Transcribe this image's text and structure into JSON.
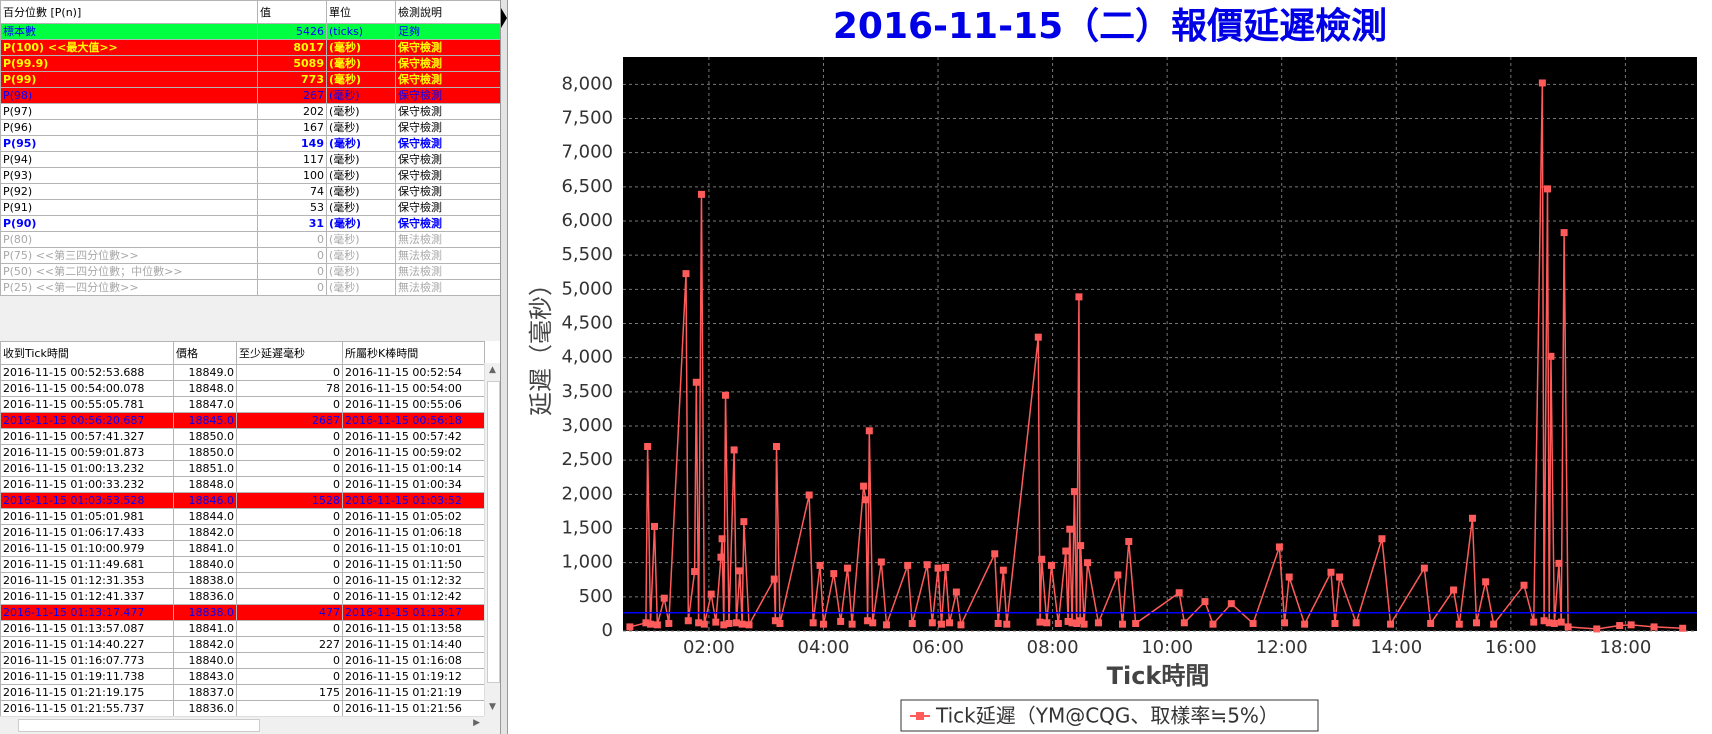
{
  "percentiles": {
    "headers": [
      "百分位數 [P(n)]",
      "值",
      "單位",
      "檢測說明"
    ],
    "rows": [
      {
        "cells": [
          "標本數",
          5426,
          "(ticks)",
          "足夠"
        ],
        "bg": "#00ff40",
        "fg": "#0000ff",
        "bold": false
      },
      {
        "cells": [
          "P(100)  <<最大值>>",
          8017,
          "(毫秒)",
          "保守檢測"
        ],
        "bg": "#ff0000",
        "fg": "#ffff00",
        "bold": true
      },
      {
        "cells": [
          "P(99.9)",
          5089,
          "(毫秒)",
          "保守檢測"
        ],
        "bg": "#ff0000",
        "fg": "#ffff00",
        "bold": true
      },
      {
        "cells": [
          "P(99)",
          773,
          "(毫秒)",
          "保守檢測"
        ],
        "bg": "#ff0000",
        "fg": "#ffff00",
        "bold": true
      },
      {
        "cells": [
          "P(98)",
          267,
          "(毫秒)",
          "保守檢測"
        ],
        "bg": "#ff0000",
        "fg": "#0000ff",
        "bold": false
      },
      {
        "cells": [
          "P(97)",
          202,
          "(毫秒)",
          "保守檢測"
        ],
        "bg": "#ffffff",
        "fg": "#000000",
        "bold": false
      },
      {
        "cells": [
          "P(96)",
          167,
          "(毫秒)",
          "保守檢測"
        ],
        "bg": "#ffffff",
        "fg": "#000000",
        "bold": false
      },
      {
        "cells": [
          "P(95)",
          149,
          "(毫秒)",
          "保守檢測"
        ],
        "bg": "#ffffff",
        "fg": "#0000ff",
        "bold": true
      },
      {
        "cells": [
          "P(94)",
          117,
          "(毫秒)",
          "保守檢測"
        ],
        "bg": "#ffffff",
        "fg": "#000000",
        "bold": false
      },
      {
        "cells": [
          "P(93)",
          100,
          "(毫秒)",
          "保守檢測"
        ],
        "bg": "#ffffff",
        "fg": "#000000",
        "bold": false
      },
      {
        "cells": [
          "P(92)",
          74,
          "(毫秒)",
          "保守檢測"
        ],
        "bg": "#ffffff",
        "fg": "#000000",
        "bold": false
      },
      {
        "cells": [
          "P(91)",
          53,
          "(毫秒)",
          "保守檢測"
        ],
        "bg": "#ffffff",
        "fg": "#000000",
        "bold": false
      },
      {
        "cells": [
          "P(90)",
          31,
          "(毫秒)",
          "保守檢測"
        ],
        "bg": "#ffffff",
        "fg": "#0000ff",
        "bold": true
      },
      {
        "cells": [
          "P(80)",
          0,
          "(毫秒)",
          "無法檢測"
        ],
        "bg": "#ffffff",
        "fg": "#a8a8a8",
        "bold": false
      },
      {
        "cells": [
          "P(75)  <<第三四分位數>>",
          0,
          "(毫秒)",
          "無法檢測"
        ],
        "bg": "#ffffff",
        "fg": "#a8a8a8",
        "bold": false
      },
      {
        "cells": [
          "P(50)  <<第二四分位數；中位數>>",
          0,
          "(毫秒)",
          "無法檢測"
        ],
        "bg": "#ffffff",
        "fg": "#a8a8a8",
        "bold": false
      },
      {
        "cells": [
          "P(25)  <<第一四分位數>>",
          0,
          "(毫秒)",
          "無法檢測"
        ],
        "bg": "#ffffff",
        "fg": "#a8a8a8",
        "bold": false
      }
    ]
  },
  "ticks": {
    "headers": [
      "收到Tick時間",
      "價格",
      "至少延遲毫秒",
      "所屬秒K棒時間"
    ],
    "rows": [
      {
        "cells": [
          "2016-11-15 00:52:53.688",
          "18849.0",
          0,
          "2016-11-15 00:52:54"
        ]
      },
      {
        "cells": [
          "2016-11-15 00:54:00.078",
          "18848.0",
          78,
          "2016-11-15 00:54:00"
        ]
      },
      {
        "cells": [
          "2016-11-15 00:55:05.781",
          "18847.0",
          0,
          "2016-11-15 00:55:06"
        ]
      },
      {
        "cells": [
          "2016-11-15 00:56:20.687",
          "18845.0",
          2687,
          "2016-11-15 00:56:18"
        ],
        "bg": "#ff0000",
        "fg": "#0000ff"
      },
      {
        "cells": [
          "2016-11-15 00:57:41.327",
          "18850.0",
          0,
          "2016-11-15 00:57:42"
        ]
      },
      {
        "cells": [
          "2016-11-15 00:59:01.873",
          "18850.0",
          0,
          "2016-11-15 00:59:02"
        ]
      },
      {
        "cells": [
          "2016-11-15 01:00:13.232",
          "18851.0",
          0,
          "2016-11-15 01:00:14"
        ]
      },
      {
        "cells": [
          "2016-11-15 01:00:33.232",
          "18848.0",
          0,
          "2016-11-15 01:00:34"
        ]
      },
      {
        "cells": [
          "2016-11-15 01:03:53.528",
          "18846.0",
          1528,
          "2016-11-15 01:03:52"
        ],
        "bg": "#ff0000",
        "fg": "#0000ff"
      },
      {
        "cells": [
          "2016-11-15 01:05:01.981",
          "18844.0",
          0,
          "2016-11-15 01:05:02"
        ]
      },
      {
        "cells": [
          "2016-11-15 01:06:17.433",
          "18842.0",
          0,
          "2016-11-15 01:06:18"
        ]
      },
      {
        "cells": [
          "2016-11-15 01:10:00.979",
          "18841.0",
          0,
          "2016-11-15 01:10:01"
        ]
      },
      {
        "cells": [
          "2016-11-15 01:11:49.681",
          "18840.0",
          0,
          "2016-11-15 01:11:50"
        ]
      },
      {
        "cells": [
          "2016-11-15 01:12:31.353",
          "18838.0",
          0,
          "2016-11-15 01:12:32"
        ]
      },
      {
        "cells": [
          "2016-11-15 01:12:41.337",
          "18836.0",
          0,
          "2016-11-15 01:12:42"
        ]
      },
      {
        "cells": [
          "2016-11-15 01:13:17.477",
          "18838.0",
          477,
          "2016-11-15 01:13:17"
        ],
        "bg": "#ff0000",
        "fg": "#0000ff"
      },
      {
        "cells": [
          "2016-11-15 01:13:57.087",
          "18841.0",
          0,
          "2016-11-15 01:13:58"
        ]
      },
      {
        "cells": [
          "2016-11-15 01:14:40.227",
          "18842.0",
          227,
          "2016-11-15 01:14:40"
        ]
      },
      {
        "cells": [
          "2016-11-15 01:16:07.773",
          "18840.0",
          0,
          "2016-11-15 01:16:08"
        ]
      },
      {
        "cells": [
          "2016-11-15 01:19:11.738",
          "18843.0",
          0,
          "2016-11-15 01:19:12"
        ]
      },
      {
        "cells": [
          "2016-11-15 01:21:19.175",
          "18837.0",
          175,
          "2016-11-15 01:21:19"
        ]
      },
      {
        "cells": [
          "2016-11-15 01:21:55.737",
          "18836.0",
          0,
          "2016-11-15 01:21:56"
        ]
      }
    ]
  },
  "chart_data": {
    "type": "line",
    "title": "2016-11-15（二）報價延遲檢測",
    "x_label": "Tick時間",
    "y_label": "延遲（毫秒）",
    "x": [
      0.62,
      0.9,
      0.93,
      0.98,
      1.05,
      1.1,
      1.22,
      1.3,
      1.6,
      1.64,
      1.75,
      1.78,
      1.82,
      1.87,
      1.92,
      2.04,
      2.12,
      2.21,
      2.23,
      2.26,
      2.29,
      2.35,
      2.44,
      2.48,
      2.54,
      2.58,
      2.61,
      2.7,
      3.14,
      3.16,
      3.18,
      3.24,
      3.75,
      3.82,
      3.94,
      4.0,
      4.18,
      4.3,
      4.42,
      4.5,
      4.7,
      4.74,
      4.77,
      4.8,
      4.86,
      5.01,
      5.1,
      5.47,
      5.55,
      5.81,
      5.9,
      6.0,
      6.06,
      6.13,
      6.2,
      6.32,
      6.4,
      6.99,
      7.05,
      7.14,
      7.2,
      7.75,
      7.78,
      7.81,
      7.9,
      7.98,
      8.1,
      8.23,
      8.27,
      8.3,
      8.34,
      8.38,
      8.42,
      8.46,
      8.48,
      8.49,
      8.55,
      8.61,
      8.8,
      9.14,
      9.22,
      9.33,
      9.45,
      10.21,
      10.3,
      10.66,
      10.8,
      11.12,
      11.5,
      11.96,
      12.05,
      12.13,
      12.4,
      12.86,
      12.93,
      13.01,
      13.3,
      13.75,
      13.9,
      14.49,
      14.6,
      15.0,
      15.1,
      15.33,
      15.4,
      15.56,
      15.7,
      16.23,
      16.4,
      16.55,
      16.58,
      16.64,
      16.67,
      16.7,
      16.76,
      16.84,
      16.88,
      16.93,
      17.0,
      17.5,
      17.9,
      18.1,
      18.5,
      19.0
    ],
    "series": [
      {
        "name": "Tick延遲（YM@CQG、取樣率≒5%）",
        "color": "#ff5b5b",
        "values": [
          60,
          120,
          2700,
          100,
          1530,
          90,
          480,
          110,
          5230,
          150,
          870,
          3640,
          120,
          6390,
          100,
          540,
          130,
          1080,
          1350,
          90,
          3450,
          110,
          2650,
          120,
          880,
          100,
          1600,
          90,
          760,
          150,
          2700,
          110,
          1990,
          120,
          960,
          100,
          840,
          140,
          920,
          100,
          2120,
          1920,
          150,
          2930,
          120,
          1010,
          90,
          960,
          110,
          970,
          120,
          920,
          100,
          930,
          120,
          570,
          90,
          1130,
          110,
          890,
          100,
          4300,
          130,
          1050,
          120,
          960,
          110,
          1170,
          140,
          1490,
          120,
          2040,
          110,
          4890,
          150,
          1250,
          100,
          1000,
          120,
          820,
          100,
          1310,
          110,
          560,
          120,
          430,
          100,
          400,
          110,
          1230,
          120,
          790,
          100,
          860,
          110,
          790,
          120,
          1350,
          100,
          920,
          110,
          600,
          100,
          1650,
          120,
          720,
          100,
          670,
          130,
          8020,
          150,
          6470,
          120,
          4020,
          110,
          990,
          130,
          5830,
          60,
          30,
          80,
          90,
          60,
          40
        ]
      }
    ],
    "reference_line": {
      "value": 267,
      "color": "#0000ff"
    },
    "xlim": [
      0.5,
      19.25
    ],
    "ylim": [
      0,
      8400
    ],
    "xticks": [
      {
        "value": 2,
        "label": "02:00"
      },
      {
        "value": 4,
        "label": "04:00"
      },
      {
        "value": 6,
        "label": "06:00"
      },
      {
        "value": 8,
        "label": "08:00"
      },
      {
        "value": 10,
        "label": "10:00"
      },
      {
        "value": 12,
        "label": "12:00"
      },
      {
        "value": 14,
        "label": "14:00"
      },
      {
        "value": 16,
        "label": "16:00"
      },
      {
        "value": 18,
        "label": "18:00"
      }
    ],
    "yticks": [
      0,
      500,
      {
        "value": 1000,
        "label": "1,000"
      },
      {
        "value": 1500,
        "label": "1,500"
      },
      {
        "value": 2000,
        "label": "2,000"
      },
      {
        "value": 2500,
        "label": "2,500"
      },
      {
        "value": 3000,
        "label": "3,000"
      },
      {
        "value": 3500,
        "label": "3,500"
      },
      {
        "value": 4000,
        "label": "4,000"
      },
      {
        "value": 4500,
        "label": "4,500"
      },
      {
        "value": 5000,
        "label": "5,000"
      },
      {
        "value": 5500,
        "label": "5,500"
      },
      {
        "value": 6000,
        "label": "6,000"
      },
      {
        "value": 6500,
        "label": "6,500"
      },
      {
        "value": 7000,
        "label": "7,000"
      },
      {
        "value": 7500,
        "label": "7,500"
      },
      {
        "value": 8000,
        "label": "8,000"
      }
    ],
    "grid": true,
    "plot_background": "#000000",
    "legend": "bottom"
  }
}
